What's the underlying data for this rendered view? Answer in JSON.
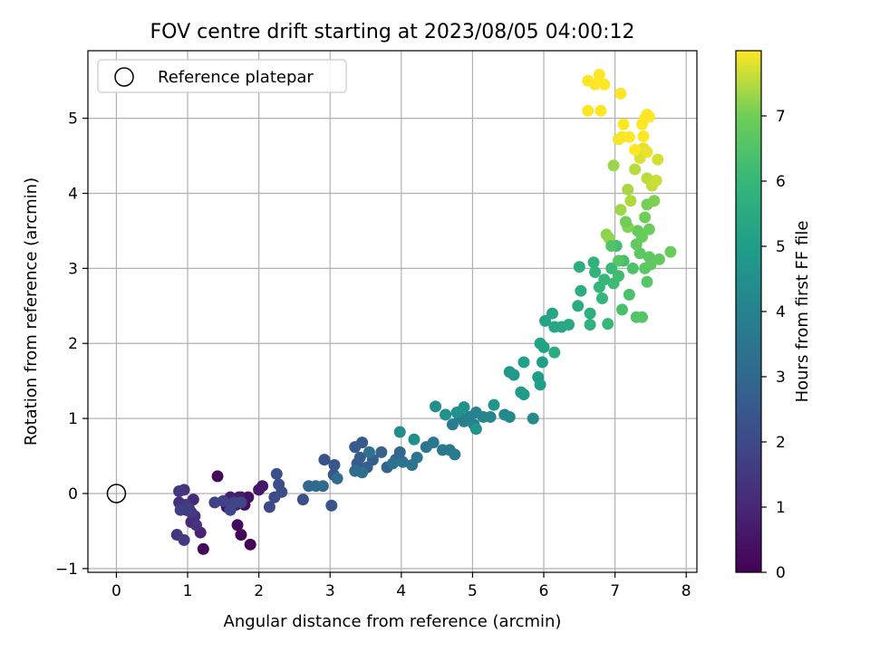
{
  "chart_data": {
    "type": "scatter",
    "title": "FOV centre drift starting at 2023/08/05 04:00:12",
    "xlabel": "Angular distance from reference (arcmin)",
    "ylabel": "Rotation from reference (arcmin)",
    "xlim": [
      -0.4,
      8.15
    ],
    "ylim": [
      -1.05,
      5.9
    ],
    "xticks": [
      0,
      1,
      2,
      3,
      4,
      5,
      6,
      7,
      8
    ],
    "yticks": [
      -1,
      0,
      1,
      2,
      3,
      4,
      5
    ],
    "grid": true,
    "legend": {
      "placement": "top-left",
      "entries": [
        {
          "label": "Reference platepar",
          "marker": "open-circle"
        }
      ]
    },
    "reference_point": {
      "x": 0,
      "y": 0
    },
    "colorbar": {
      "label": "Hours from first FF file",
      "range": [
        0,
        8
      ],
      "ticks": [
        0,
        1,
        2,
        3,
        4,
        5,
        6,
        7
      ],
      "colormap": "viridis"
    },
    "series": [
      {
        "color_by": "hours",
        "points": [
          {
            "x": 1.75,
            "y": -0.55,
            "h": 0.05
          },
          {
            "x": 1.88,
            "y": -0.68,
            "h": 0.1
          },
          {
            "x": 1.22,
            "y": -0.74,
            "h": 0.15
          },
          {
            "x": 1.42,
            "y": 0.23,
            "h": 0.2
          },
          {
            "x": 1.7,
            "y": -0.42,
            "h": 0.25
          },
          {
            "x": 1.8,
            "y": -0.15,
            "h": 0.3
          },
          {
            "x": 1.62,
            "y": -0.1,
            "h": 0.35
          },
          {
            "x": 1.75,
            "y": -0.05,
            "h": 0.4
          },
          {
            "x": 1.85,
            "y": -0.05,
            "h": 0.45
          },
          {
            "x": 1.55,
            "y": -0.18,
            "h": 0.5
          },
          {
            "x": 2.05,
            "y": 0.1,
            "h": 0.55
          },
          {
            "x": 2.0,
            "y": 0.05,
            "h": 0.6
          },
          {
            "x": 1.68,
            "y": -0.15,
            "h": 0.65
          },
          {
            "x": 1.72,
            "y": -0.05,
            "h": 0.7
          },
          {
            "x": 1.6,
            "y": -0.05,
            "h": 0.8
          },
          {
            "x": 1.18,
            "y": -0.52,
            "h": 0.9
          },
          {
            "x": 1.05,
            "y": -0.38,
            "h": 1.0
          },
          {
            "x": 1.08,
            "y": -0.08,
            "h": 1.1
          },
          {
            "x": 0.98,
            "y": -0.22,
            "h": 1.15
          },
          {
            "x": 1.1,
            "y": -0.3,
            "h": 1.2
          },
          {
            "x": 0.88,
            "y": -0.12,
            "h": 1.25
          },
          {
            "x": 0.95,
            "y": 0.05,
            "h": 1.3
          },
          {
            "x": 1.12,
            "y": -0.42,
            "h": 1.35
          },
          {
            "x": 0.85,
            "y": -0.55,
            "h": 1.4
          },
          {
            "x": 0.98,
            "y": -0.15,
            "h": 1.45
          },
          {
            "x": 0.88,
            "y": 0.03,
            "h": 1.5
          },
          {
            "x": 1.05,
            "y": -0.25,
            "h": 1.55
          },
          {
            "x": 0.95,
            "y": -0.62,
            "h": 1.6
          },
          {
            "x": 1.02,
            "y": -0.2,
            "h": 1.65
          },
          {
            "x": 0.9,
            "y": -0.22,
            "h": 1.7
          },
          {
            "x": 1.5,
            "y": -0.1,
            "h": 1.75
          },
          {
            "x": 1.38,
            "y": -0.12,
            "h": 1.8
          },
          {
            "x": 1.65,
            "y": -0.12,
            "h": 1.85
          },
          {
            "x": 1.6,
            "y": -0.22,
            "h": 1.9
          },
          {
            "x": 1.75,
            "y": -0.12,
            "h": 1.95
          },
          {
            "x": 2.15,
            "y": -0.18,
            "h": 2.0
          },
          {
            "x": 2.22,
            "y": -0.05,
            "h": 2.05
          },
          {
            "x": 2.28,
            "y": 0.12,
            "h": 2.1
          },
          {
            "x": 2.32,
            "y": 0.02,
            "h": 2.15
          },
          {
            "x": 2.25,
            "y": 0.26,
            "h": 2.2
          },
          {
            "x": 2.62,
            "y": -0.08,
            "h": 2.25
          },
          {
            "x": 2.92,
            "y": 0.45,
            "h": 2.3
          },
          {
            "x": 3.02,
            "y": -0.16,
            "h": 2.35
          },
          {
            "x": 3.05,
            "y": 0.25,
            "h": 2.4
          },
          {
            "x": 3.06,
            "y": 0.38,
            "h": 2.45
          },
          {
            "x": 3.35,
            "y": 0.62,
            "h": 2.5
          },
          {
            "x": 3.45,
            "y": 0.68,
            "h": 2.55
          },
          {
            "x": 3.38,
            "y": 0.4,
            "h": 2.6
          },
          {
            "x": 3.42,
            "y": 0.48,
            "h": 2.65
          },
          {
            "x": 3.52,
            "y": 0.35,
            "h": 2.7
          },
          {
            "x": 3.6,
            "y": 0.45,
            "h": 2.75
          },
          {
            "x": 3.72,
            "y": 0.55,
            "h": 2.8
          },
          {
            "x": 3.8,
            "y": 0.35,
            "h": 2.85
          },
          {
            "x": 3.92,
            "y": 0.45,
            "h": 2.9
          },
          {
            "x": 3.98,
            "y": 0.55,
            "h": 2.95
          },
          {
            "x": 2.7,
            "y": 0.1,
            "h": 3.0
          },
          {
            "x": 2.8,
            "y": 0.1,
            "h": 3.05
          },
          {
            "x": 2.9,
            "y": 0.1,
            "h": 3.1
          },
          {
            "x": 3.1,
            "y": 0.2,
            "h": 3.15
          },
          {
            "x": 3.35,
            "y": 0.3,
            "h": 3.2
          },
          {
            "x": 3.45,
            "y": 0.28,
            "h": 3.25
          },
          {
            "x": 3.55,
            "y": 0.55,
            "h": 3.3
          },
          {
            "x": 3.88,
            "y": 0.4,
            "h": 3.35
          },
          {
            "x": 4.02,
            "y": 0.42,
            "h": 3.4
          },
          {
            "x": 4.15,
            "y": 0.38,
            "h": 3.45
          },
          {
            "x": 4.22,
            "y": 0.48,
            "h": 3.5
          },
          {
            "x": 4.35,
            "y": 0.62,
            "h": 3.55
          },
          {
            "x": 4.45,
            "y": 0.68,
            "h": 3.6
          },
          {
            "x": 4.58,
            "y": 0.58,
            "h": 3.65
          },
          {
            "x": 4.68,
            "y": 0.58,
            "h": 3.7
          },
          {
            "x": 4.75,
            "y": 0.52,
            "h": 3.75
          },
          {
            "x": 4.72,
            "y": 0.92,
            "h": 3.8
          },
          {
            "x": 4.82,
            "y": 1.02,
            "h": 3.85
          },
          {
            "x": 4.88,
            "y": 0.96,
            "h": 3.9
          },
          {
            "x": 4.95,
            "y": 1.02,
            "h": 3.95
          },
          {
            "x": 5.02,
            "y": 0.92,
            "h": 4.0
          },
          {
            "x": 5.05,
            "y": 1.08,
            "h": 4.05
          },
          {
            "x": 5.15,
            "y": 1.02,
            "h": 4.1
          },
          {
            "x": 5.25,
            "y": 1.02,
            "h": 4.15
          },
          {
            "x": 5.45,
            "y": 1.05,
            "h": 4.2
          },
          {
            "x": 5.52,
            "y": 1.02,
            "h": 4.25
          },
          {
            "x": 5.85,
            "y": 1.0,
            "h": 4.3
          },
          {
            "x": 3.98,
            "y": 0.82,
            "h": 4.35
          },
          {
            "x": 4.18,
            "y": 0.72,
            "h": 4.4
          },
          {
            "x": 4.48,
            "y": 1.16,
            "h": 4.45
          },
          {
            "x": 4.62,
            "y": 1.05,
            "h": 4.5
          },
          {
            "x": 4.78,
            "y": 1.08,
            "h": 4.55
          },
          {
            "x": 4.88,
            "y": 1.15,
            "h": 4.6
          },
          {
            "x": 5.05,
            "y": 0.86,
            "h": 4.65
          },
          {
            "x": 5.3,
            "y": 1.18,
            "h": 4.7
          },
          {
            "x": 5.52,
            "y": 1.62,
            "h": 4.75
          },
          {
            "x": 5.58,
            "y": 1.58,
            "h": 4.8
          },
          {
            "x": 5.68,
            "y": 1.35,
            "h": 4.85
          },
          {
            "x": 5.72,
            "y": 1.32,
            "h": 4.9
          },
          {
            "x": 5.92,
            "y": 1.55,
            "h": 4.95
          },
          {
            "x": 5.95,
            "y": 1.45,
            "h": 5.0
          },
          {
            "x": 5.98,
            "y": 1.75,
            "h": 5.05
          },
          {
            "x": 5.72,
            "y": 1.75,
            "h": 5.1
          },
          {
            "x": 5.95,
            "y": 2.0,
            "h": 5.15
          },
          {
            "x": 6.0,
            "y": 1.95,
            "h": 5.2
          },
          {
            "x": 6.02,
            "y": 2.3,
            "h": 5.25
          },
          {
            "x": 6.12,
            "y": 2.4,
            "h": 5.3
          },
          {
            "x": 6.15,
            "y": 2.22,
            "h": 5.35
          },
          {
            "x": 6.25,
            "y": 2.22,
            "h": 5.4
          },
          {
            "x": 6.35,
            "y": 2.25,
            "h": 5.45
          },
          {
            "x": 6.15,
            "y": 1.88,
            "h": 5.5
          },
          {
            "x": 6.48,
            "y": 2.5,
            "h": 5.55
          },
          {
            "x": 6.52,
            "y": 2.7,
            "h": 5.6
          },
          {
            "x": 6.5,
            "y": 3.02,
            "h": 5.65
          },
          {
            "x": 6.65,
            "y": 2.4,
            "h": 5.7
          },
          {
            "x": 6.65,
            "y": 2.25,
            "h": 5.75
          },
          {
            "x": 6.7,
            "y": 3.08,
            "h": 5.8
          },
          {
            "x": 6.72,
            "y": 2.95,
            "h": 5.85
          },
          {
            "x": 6.82,
            "y": 2.6,
            "h": 5.9
          },
          {
            "x": 6.78,
            "y": 2.75,
            "h": 5.95
          },
          {
            "x": 6.85,
            "y": 2.85,
            "h": 6.0
          },
          {
            "x": 6.9,
            "y": 2.26,
            "h": 6.05
          },
          {
            "x": 6.95,
            "y": 3.0,
            "h": 6.1
          },
          {
            "x": 6.98,
            "y": 2.8,
            "h": 6.15
          },
          {
            "x": 7.05,
            "y": 2.9,
            "h": 6.2
          },
          {
            "x": 7.02,
            "y": 3.3,
            "h": 6.25
          },
          {
            "x": 7.12,
            "y": 3.1,
            "h": 6.3
          },
          {
            "x": 7.1,
            "y": 2.45,
            "h": 6.35
          },
          {
            "x": 7.2,
            "y": 2.65,
            "h": 6.4
          },
          {
            "x": 7.25,
            "y": 3.0,
            "h": 6.45
          },
          {
            "x": 7.3,
            "y": 2.35,
            "h": 6.5
          },
          {
            "x": 7.38,
            "y": 2.35,
            "h": 6.55
          },
          {
            "x": 7.45,
            "y": 2.82,
            "h": 6.6
          },
          {
            "x": 7.42,
            "y": 3.0,
            "h": 6.65
          },
          {
            "x": 7.48,
            "y": 3.15,
            "h": 6.7
          },
          {
            "x": 7.5,
            "y": 3.05,
            "h": 6.75
          },
          {
            "x": 7.3,
            "y": 3.32,
            "h": 6.8
          },
          {
            "x": 7.32,
            "y": 3.5,
            "h": 6.85
          },
          {
            "x": 7.38,
            "y": 3.42,
            "h": 6.9
          },
          {
            "x": 7.48,
            "y": 3.52,
            "h": 6.95
          },
          {
            "x": 7.42,
            "y": 3.68,
            "h": 7.0
          },
          {
            "x": 7.45,
            "y": 3.85,
            "h": 7.05
          },
          {
            "x": 7.55,
            "y": 3.9,
            "h": 7.1
          },
          {
            "x": 7.18,
            "y": 3.55,
            "h": 7.15
          },
          {
            "x": 6.88,
            "y": 3.45,
            "h": 7.2
          },
          {
            "x": 6.92,
            "y": 3.4,
            "h": 7.25
          },
          {
            "x": 6.98,
            "y": 4.37,
            "h": 7.3
          },
          {
            "x": 7.08,
            "y": 3.78,
            "h": 7.35
          },
          {
            "x": 7.18,
            "y": 4.05,
            "h": 7.4
          },
          {
            "x": 7.22,
            "y": 3.9,
            "h": 7.45
          },
          {
            "x": 7.28,
            "y": 4.32,
            "h": 7.5
          },
          {
            "x": 7.45,
            "y": 4.2,
            "h": 7.55
          },
          {
            "x": 7.52,
            "y": 4.1,
            "h": 7.6
          },
          {
            "x": 7.58,
            "y": 4.17,
            "h": 7.65
          },
          {
            "x": 7.6,
            "y": 4.45,
            "h": 7.7
          },
          {
            "x": 7.35,
            "y": 4.47,
            "h": 7.75
          },
          {
            "x": 7.4,
            "y": 4.6,
            "h": 7.8
          },
          {
            "x": 7.45,
            "y": 4.55,
            "h": 7.85
          },
          {
            "x": 7.05,
            "y": 4.72,
            "h": 7.9
          },
          {
            "x": 7.1,
            "y": 4.75,
            "h": 7.95
          },
          {
            "x": 7.2,
            "y": 4.75,
            "h": 8.0
          },
          {
            "x": 7.4,
            "y": 4.76,
            "h": 8.05
          },
          {
            "x": 7.28,
            "y": 4.58,
            "h": 8.1
          },
          {
            "x": 7.12,
            "y": 4.92,
            "h": 8.15
          },
          {
            "x": 7.38,
            "y": 4.92,
            "h": 8.2
          },
          {
            "x": 7.42,
            "y": 5.0,
            "h": 8.25
          },
          {
            "x": 7.45,
            "y": 5.05,
            "h": 8.3
          },
          {
            "x": 7.48,
            "y": 5.02,
            "h": 8.35
          },
          {
            "x": 7.08,
            "y": 5.33,
            "h": 8.4
          },
          {
            "x": 6.62,
            "y": 5.5,
            "h": 8.45
          },
          {
            "x": 6.78,
            "y": 5.58,
            "h": 8.5
          },
          {
            "x": 6.72,
            "y": 5.45,
            "h": 8.55
          },
          {
            "x": 6.85,
            "y": 5.45,
            "h": 8.6
          },
          {
            "x": 6.62,
            "y": 5.1,
            "h": 8.65
          },
          {
            "x": 6.8,
            "y": 5.1,
            "h": 8.7
          },
          {
            "x": 7.05,
            "y": 3.1,
            "h": 6.6
          },
          {
            "x": 7.35,
            "y": 3.2,
            "h": 6.7
          },
          {
            "x": 7.78,
            "y": 3.22,
            "h": 6.9
          },
          {
            "x": 7.62,
            "y": 3.12,
            "h": 6.8
          },
          {
            "x": 7.15,
            "y": 3.62,
            "h": 7.0
          },
          {
            "x": 6.95,
            "y": 3.3,
            "h": 6.5
          }
        ]
      }
    ]
  }
}
